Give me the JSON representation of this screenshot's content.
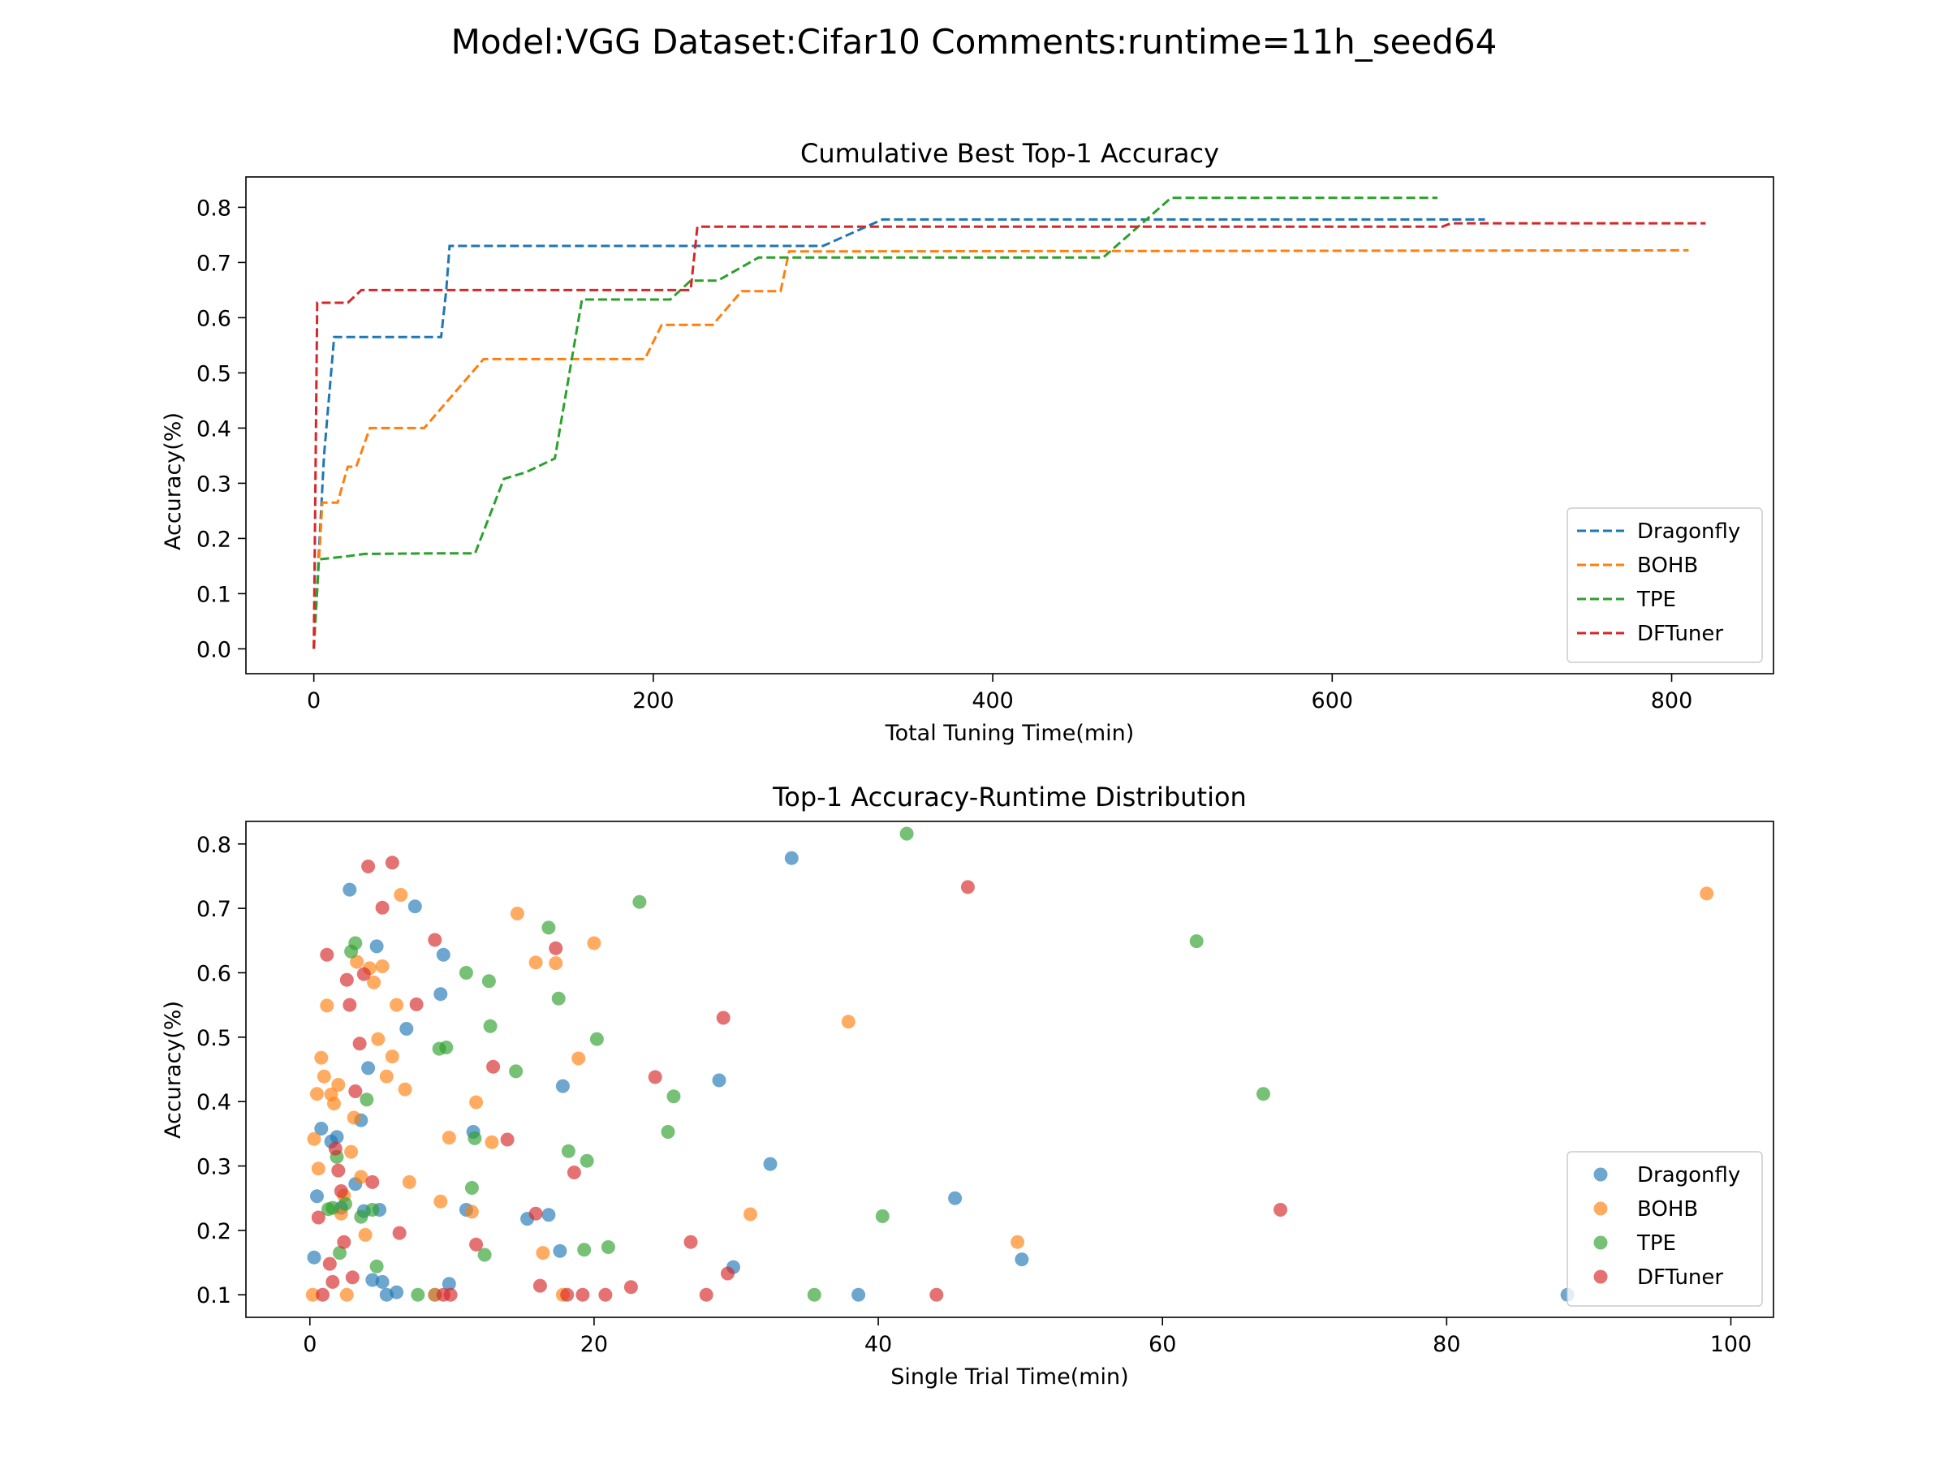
{
  "figure": {
    "suptitle": "Model:VGG Dataset:Cifar10 Comments:runtime=11h_seed64"
  },
  "colors": {
    "Dragonfly": "#1f77b4",
    "BOHB": "#ff7f0e",
    "TPE": "#2ca02c",
    "DFTuner": "#d62728"
  },
  "chart_data": [
    {
      "type": "line",
      "title": "Cumulative Best Top-1 Accuracy",
      "xlabel": "Total Tuning Time(min)",
      "ylabel": "Accuracy(%)",
      "xlim": [
        -40,
        860
      ],
      "ylim": [
        -0.045,
        0.855
      ],
      "xticks": [
        0,
        200,
        400,
        600,
        800
      ],
      "yticks": [
        0.0,
        0.1,
        0.2,
        0.3,
        0.4,
        0.5,
        0.6,
        0.7,
        0.8
      ],
      "line_style": "dashed",
      "legend": "lower-right",
      "series": [
        {
          "name": "Dragonfly",
          "x": [
            0,
            6,
            12,
            75,
            78,
            80,
            300,
            335,
            690
          ],
          "y": [
            0.0,
            0.35,
            0.565,
            0.565,
            0.65,
            0.73,
            0.73,
            0.778,
            0.778
          ]
        },
        {
          "name": "BOHB",
          "x": [
            0,
            5,
            14,
            20,
            25,
            33,
            65,
            100,
            195,
            205,
            235,
            252,
            275,
            280,
            810
          ],
          "y": [
            0.0,
            0.265,
            0.265,
            0.33,
            0.33,
            0.4,
            0.4,
            0.525,
            0.525,
            0.587,
            0.587,
            0.648,
            0.648,
            0.72,
            0.722
          ]
        },
        {
          "name": "TPE",
          "x": [
            0,
            3,
            18,
            30,
            70,
            95,
            112,
            125,
            142,
            158,
            210,
            222,
            238,
            262,
            465,
            505,
            662
          ],
          "y": [
            0.0,
            0.162,
            0.167,
            0.172,
            0.173,
            0.173,
            0.308,
            0.32,
            0.345,
            0.633,
            0.633,
            0.667,
            0.667,
            0.709,
            0.709,
            0.817,
            0.817
          ]
        },
        {
          "name": "DFTuner",
          "x": [
            0,
            2,
            20,
            28,
            222,
            226,
            665,
            670,
            820
          ],
          "y": [
            0.0,
            0.627,
            0.627,
            0.65,
            0.65,
            0.765,
            0.765,
            0.771,
            0.771
          ]
        }
      ]
    },
    {
      "type": "scatter",
      "title": "Top-1 Accuracy-Runtime Distribution",
      "xlabel": "Single Trial Time(min)",
      "ylabel": "Accuracy(%)",
      "xlim": [
        -4.5,
        103
      ],
      "ylim": [
        0.065,
        0.835
      ],
      "xticks": [
        0,
        20,
        40,
        60,
        80,
        100
      ],
      "yticks": [
        0.1,
        0.2,
        0.3,
        0.4,
        0.5,
        0.6,
        0.7,
        0.8
      ],
      "legend": "lower-right",
      "series": [
        {
          "name": "Dragonfly",
          "x": [
            0.3,
            0.5,
            0.8,
            1.5,
            1.9,
            2.2,
            2.8,
            3.2,
            3.6,
            3.8,
            4.1,
            4.4,
            4.7,
            4.9,
            5.1,
            5.4,
            6.1,
            6.8,
            7.4,
            8.8,
            9.2,
            9.4,
            9.8,
            11.0,
            11.5,
            15.3,
            16.8,
            17.6,
            17.8,
            28.8,
            29.8,
            32.4,
            33.9,
            38.6,
            45.4,
            50.1,
            88.5
          ],
          "y": [
            0.158,
            0.253,
            0.358,
            0.338,
            0.345,
            0.235,
            0.729,
            0.272,
            0.371,
            0.23,
            0.452,
            0.123,
            0.641,
            0.232,
            0.12,
            0.1,
            0.104,
            0.513,
            0.703,
            0.1,
            0.567,
            0.628,
            0.117,
            0.232,
            0.353,
            0.218,
            0.224,
            0.168,
            0.424,
            0.433,
            0.143,
            0.303,
            0.778,
            0.1,
            0.25,
            0.155,
            0.1
          ]
        },
        {
          "name": "BOHB",
          "x": [
            0.2,
            0.3,
            0.5,
            0.6,
            0.8,
            1.0,
            1.2,
            1.5,
            1.7,
            2.0,
            2.2,
            2.4,
            2.6,
            2.9,
            3.1,
            3.3,
            3.6,
            3.9,
            4.2,
            4.5,
            4.8,
            5.1,
            5.4,
            5.8,
            6.1,
            6.4,
            6.7,
            7.0,
            8.8,
            9.2,
            9.8,
            11.4,
            11.7,
            12.8,
            14.6,
            15.9,
            16.4,
            17.3,
            17.8,
            18.9,
            20.0,
            31.0,
            37.9,
            49.8,
            98.3
          ],
          "y": [
            0.1,
            0.342,
            0.412,
            0.296,
            0.468,
            0.439,
            0.549,
            0.411,
            0.397,
            0.426,
            0.226,
            0.254,
            0.1,
            0.322,
            0.375,
            0.617,
            0.283,
            0.193,
            0.607,
            0.585,
            0.497,
            0.61,
            0.439,
            0.47,
            0.55,
            0.721,
            0.419,
            0.275,
            0.1,
            0.245,
            0.344,
            0.229,
            0.399,
            0.337,
            0.692,
            0.616,
            0.165,
            0.615,
            0.1,
            0.467,
            0.646,
            0.225,
            0.524,
            0.182,
            0.723
          ]
        },
        {
          "name": "TPE",
          "x": [
            1.3,
            1.6,
            1.9,
            2.1,
            2.5,
            2.9,
            3.2,
            3.6,
            4.0,
            4.4,
            4.7,
            7.6,
            9.1,
            9.6,
            11.0,
            11.4,
            11.6,
            12.3,
            12.6,
            12.7,
            14.5,
            16.8,
            17.5,
            18.2,
            19.3,
            19.5,
            20.2,
            21.0,
            23.2,
            25.2,
            25.6,
            35.5,
            40.3,
            42.0,
            62.4,
            67.1
          ],
          "y": [
            0.233,
            0.235,
            0.314,
            0.165,
            0.241,
            0.633,
            0.646,
            0.221,
            0.403,
            0.232,
            0.144,
            0.1,
            0.482,
            0.484,
            0.6,
            0.266,
            0.343,
            0.162,
            0.587,
            0.517,
            0.447,
            0.67,
            0.56,
            0.323,
            0.17,
            0.308,
            0.497,
            0.174,
            0.71,
            0.353,
            0.408,
            0.1,
            0.222,
            0.816,
            0.649,
            0.412
          ]
        },
        {
          "name": "DFTuner",
          "x": [
            0.6,
            0.9,
            1.2,
            1.4,
            1.6,
            1.8,
            2.0,
            2.2,
            2.4,
            2.6,
            2.8,
            3.0,
            3.2,
            3.5,
            3.8,
            4.1,
            4.4,
            5.1,
            5.8,
            6.3,
            7.5,
            8.8,
            9.4,
            9.9,
            11.7,
            12.9,
            13.9,
            15.9,
            16.2,
            17.3,
            18.1,
            18.6,
            19.2,
            20.8,
            22.6,
            24.3,
            26.8,
            27.9,
            29.1,
            29.4,
            44.1,
            46.3,
            68.3
          ],
          "y": [
            0.22,
            0.1,
            0.628,
            0.148,
            0.12,
            0.327,
            0.293,
            0.261,
            0.182,
            0.589,
            0.55,
            0.127,
            0.416,
            0.49,
            0.598,
            0.765,
            0.275,
            0.701,
            0.771,
            0.196,
            0.551,
            0.651,
            0.1,
            0.1,
            0.178,
            0.454,
            0.341,
            0.226,
            0.114,
            0.638,
            0.1,
            0.29,
            0.1,
            0.1,
            0.112,
            0.438,
            0.182,
            0.1,
            0.53,
            0.133,
            0.1,
            0.733,
            0.232
          ]
        }
      ]
    }
  ]
}
